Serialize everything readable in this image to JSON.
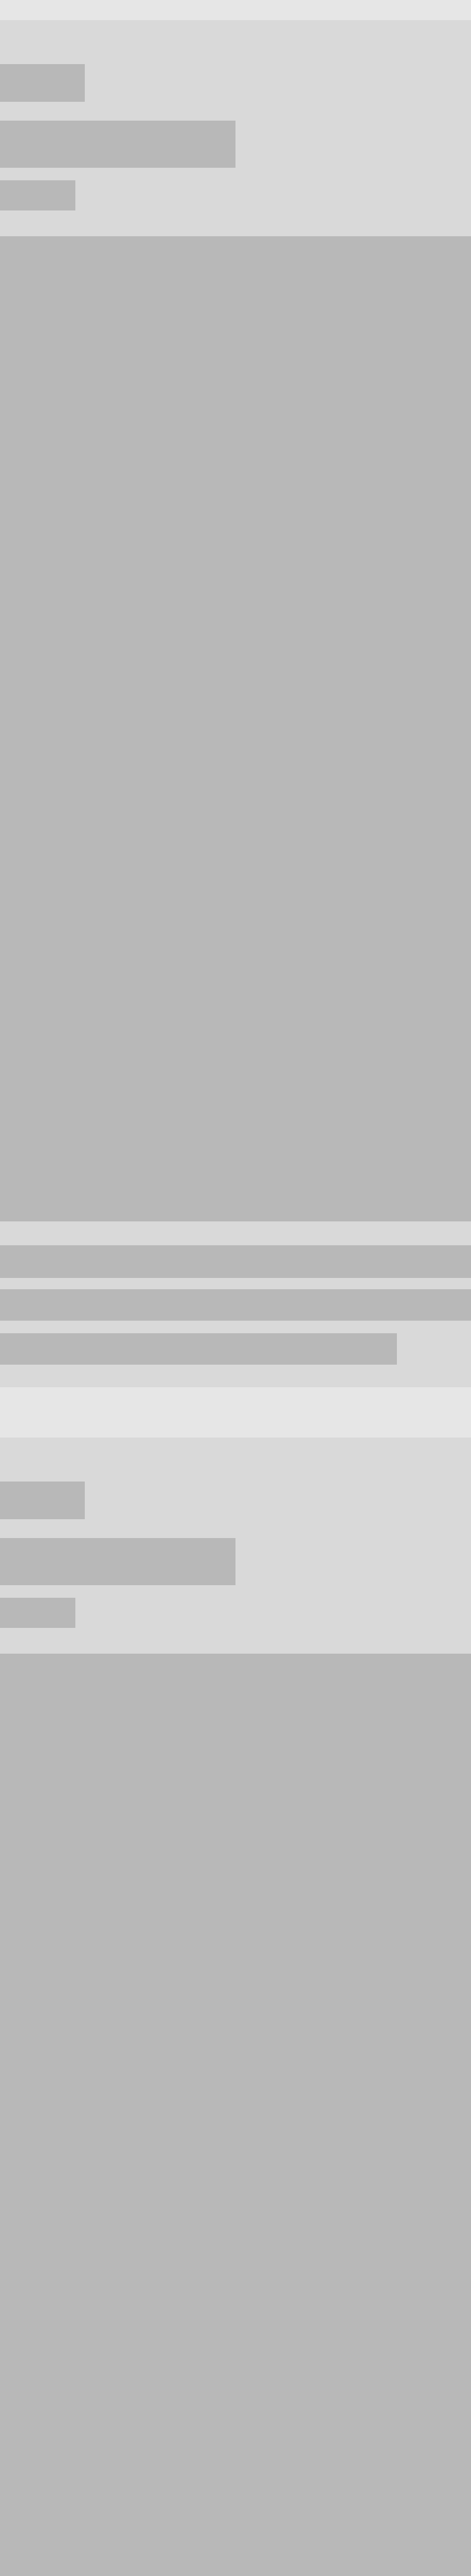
{
  "screen": {
    "state": "loading-skeleton"
  },
  "palette": {
    "background": "#d9d9d9",
    "separator": "#e6e6e6",
    "placeholder": "#b8b8b8"
  },
  "feed": [
    {
      "kind": "skeleton-post",
      "has_media": true,
      "text": []
    },
    {
      "kind": "skeleton-post",
      "has_media": true,
      "text": []
    }
  ]
}
